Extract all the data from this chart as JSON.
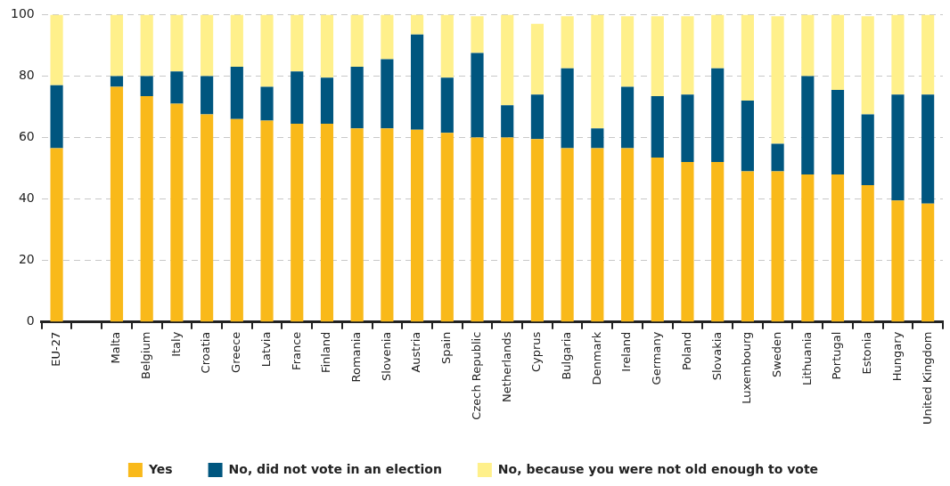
{
  "chart_data": {
    "type": "bar",
    "stacked": true,
    "categories": [
      "EU-27",
      null,
      "Malta",
      "Belgium",
      "Italy",
      "Croatia",
      "Greece",
      "Latvia",
      "France",
      "Finland",
      "Romania",
      "Slovenia",
      "Austria",
      "Spain",
      "Czech Republic",
      "Netherlands",
      "Cyprus",
      "Bulgaria",
      "Denmark",
      "Ireland",
      "Germany",
      "Poland",
      "Slovakia",
      "Luxembourg",
      "Sweden",
      "Lithuania",
      "Portugal",
      "Estonia",
      "Hungary",
      "United Kingdom"
    ],
    "series": [
      {
        "name": "Yes",
        "color": "#f9b91a",
        "values": [
          56.5,
          null,
          76.5,
          73.5,
          71,
          67.5,
          66,
          65.5,
          64.5,
          64.5,
          63,
          63,
          62.5,
          61.5,
          60,
          60,
          59.5,
          56.5,
          56.5,
          56.5,
          53.5,
          52,
          52,
          49,
          49,
          48,
          48,
          44.5,
          39.5,
          38.5
        ]
      },
      {
        "name": "No, did not vote in an election",
        "color": "#00567f",
        "values": [
          20.5,
          null,
          3.5,
          6.5,
          10.5,
          12.5,
          17,
          11,
          17,
          15,
          20,
          22.5,
          31,
          18,
          27.5,
          10.5,
          14.5,
          26,
          6.5,
          20,
          20,
          22,
          30.5,
          23,
          9,
          32,
          27.5,
          23,
          34.5,
          35.5
        ]
      },
      {
        "name": "No, because you were not old enough to vote",
        "color": "#fff08b",
        "values": [
          23,
          null,
          20,
          20,
          18.5,
          20,
          17,
          23.5,
          18.5,
          20.5,
          17,
          14.5,
          6.5,
          20.5,
          12,
          29.5,
          23,
          17,
          37,
          23,
          26,
          25.5,
          17.5,
          28,
          41.5,
          20,
          24.5,
          32,
          26,
          26
        ]
      }
    ],
    "ylim": [
      0,
      100
    ],
    "yticks": [
      0,
      20,
      40,
      60,
      80,
      100
    ],
    "grid": "y",
    "legend": "bottom"
  }
}
